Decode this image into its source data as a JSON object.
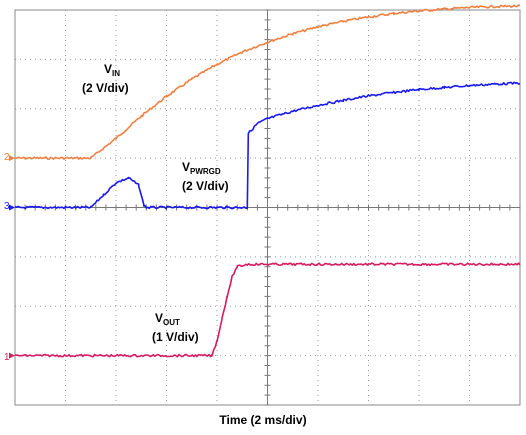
{
  "chart_data": {
    "type": "line",
    "xlabel": "Time (2 ms/div)",
    "x_divisions": 10,
    "y_divisions": 8,
    "x_range_div": [
      0,
      10
    ],
    "y_range_div": [
      0,
      8
    ],
    "grid": true,
    "legend": "none",
    "series": [
      {
        "label_main": "V",
        "label_sub": "IN",
        "label_scale": "(2 V/div)",
        "channel_marker": "2",
        "color": "#f08040",
        "points": [
          [
            0,
            5
          ],
          [
            1.5,
            5
          ],
          [
            2,
            5.4
          ],
          [
            2.5,
            5.85
          ],
          [
            3,
            6.25
          ],
          [
            3.5,
            6.6
          ],
          [
            4,
            6.9
          ],
          [
            4.5,
            7.15
          ],
          [
            5,
            7.35
          ],
          [
            5.5,
            7.52
          ],
          [
            6,
            7.66
          ],
          [
            6.5,
            7.77
          ],
          [
            7,
            7.86
          ],
          [
            7.5,
            7.93
          ],
          [
            8,
            7.98
          ],
          [
            8.5,
            8.02
          ],
          [
            9,
            8.05
          ],
          [
            9.5,
            8.07
          ],
          [
            10,
            8.08
          ]
        ]
      },
      {
        "label_main": "V",
        "label_sub": "PWRGD",
        "label_scale": "(2 V/div)",
        "channel_marker": "3",
        "color": "#1a1aee",
        "points": [
          [
            0,
            4
          ],
          [
            1.5,
            4
          ],
          [
            1.75,
            4.25
          ],
          [
            2,
            4.5
          ],
          [
            2.25,
            4.6
          ],
          [
            2.45,
            4.45
          ],
          [
            2.55,
            4.05
          ],
          [
            2.6,
            4
          ],
          [
            4.6,
            4
          ],
          [
            4.62,
            5.5
          ],
          [
            4.8,
            5.7
          ],
          [
            5,
            5.8
          ],
          [
            5.5,
            5.95
          ],
          [
            6,
            6.07
          ],
          [
            6.5,
            6.17
          ],
          [
            7,
            6.26
          ],
          [
            7.5,
            6.33
          ],
          [
            8,
            6.39
          ],
          [
            8.5,
            6.43
          ],
          [
            9,
            6.47
          ],
          [
            9.5,
            6.5
          ],
          [
            10,
            6.52
          ]
        ]
      },
      {
        "label_main": "V",
        "label_sub": "OUT",
        "label_scale": "(1 V/div)",
        "channel_marker": "1",
        "color": "#d81b60",
        "points": [
          [
            0,
            1
          ],
          [
            3.9,
            1
          ],
          [
            4,
            1.3
          ],
          [
            4.1,
            1.75
          ],
          [
            4.2,
            2.2
          ],
          [
            4.3,
            2.6
          ],
          [
            4.4,
            2.8
          ],
          [
            4.6,
            2.85
          ],
          [
            10,
            2.85
          ]
        ]
      }
    ]
  }
}
